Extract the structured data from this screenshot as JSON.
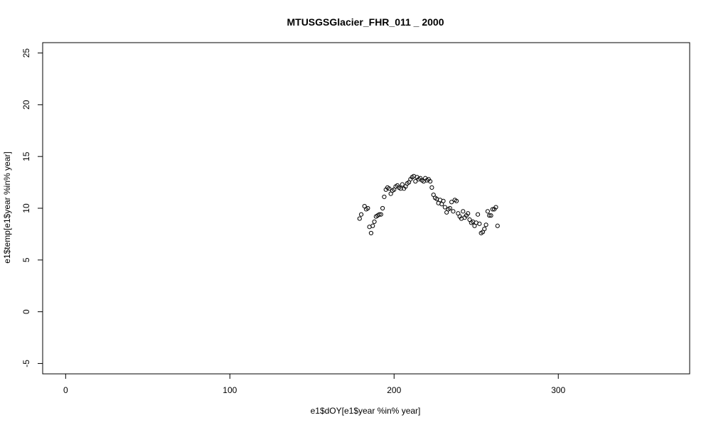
{
  "chart_data": {
    "type": "scatter",
    "title": "MTUSGSGlacier_FHR_011 _ 2000",
    "xlabel": "e1$dOY[e1$year %in% year]",
    "ylabel": "e1$temp[e1$year %in% year]",
    "xlim": [
      -14,
      380
    ],
    "ylim": [
      -6,
      26
    ],
    "xticks": [
      0,
      100,
      200,
      300
    ],
    "yticks": [
      -5,
      0,
      5,
      10,
      15,
      20,
      25
    ],
    "grid": false,
    "legend": "none",
    "marker": "open-circle",
    "colors": {
      "points": "#000000",
      "axes": "#000000"
    },
    "x": [
      179,
      180,
      182,
      183,
      184,
      185,
      186,
      187,
      188,
      189,
      190,
      191,
      192,
      193,
      194,
      195,
      196,
      197,
      198,
      199,
      200,
      201,
      202,
      203,
      204,
      205,
      206,
      207,
      208,
      209,
      210,
      211,
      212,
      213,
      214,
      215,
      216,
      217,
      218,
      219,
      220,
      221,
      222,
      223,
      224,
      225,
      226,
      227,
      228,
      229,
      230,
      231,
      232,
      233,
      234,
      235,
      236,
      237,
      238,
      239,
      240,
      241,
      242,
      243,
      244,
      245,
      246,
      247,
      248,
      249,
      250,
      251,
      252,
      253,
      254,
      255,
      256,
      257,
      258,
      259,
      260,
      261,
      262,
      263
    ],
    "y": [
      9.0,
      9.4,
      10.2,
      9.9,
      10.0,
      8.2,
      7.6,
      8.3,
      8.7,
      9.2,
      9.3,
      9.4,
      9.4,
      10.0,
      11.1,
      11.8,
      12.0,
      11.9,
      11.4,
      11.7,
      11.8,
      12.1,
      12.2,
      12.0,
      11.9,
      12.3,
      11.9,
      12.1,
      12.4,
      12.5,
      12.8,
      13.0,
      13.1,
      12.6,
      13.0,
      12.8,
      12.9,
      12.7,
      12.6,
      12.9,
      12.7,
      12.8,
      12.6,
      12.0,
      11.3,
      11.0,
      10.9,
      10.5,
      10.8,
      10.4,
      10.7,
      10.1,
      9.6,
      9.9,
      10.0,
      10.6,
      9.7,
      10.8,
      10.7,
      9.5,
      9.2,
      9.0,
      9.7,
      9.1,
      9.3,
      9.5,
      8.9,
      8.6,
      8.7,
      8.3,
      8.6,
      9.4,
      8.5,
      7.6,
      7.7,
      8.0,
      8.4,
      9.7,
      9.3,
      9.3,
      9.9,
      9.9,
      10.1,
      8.3
    ]
  }
}
